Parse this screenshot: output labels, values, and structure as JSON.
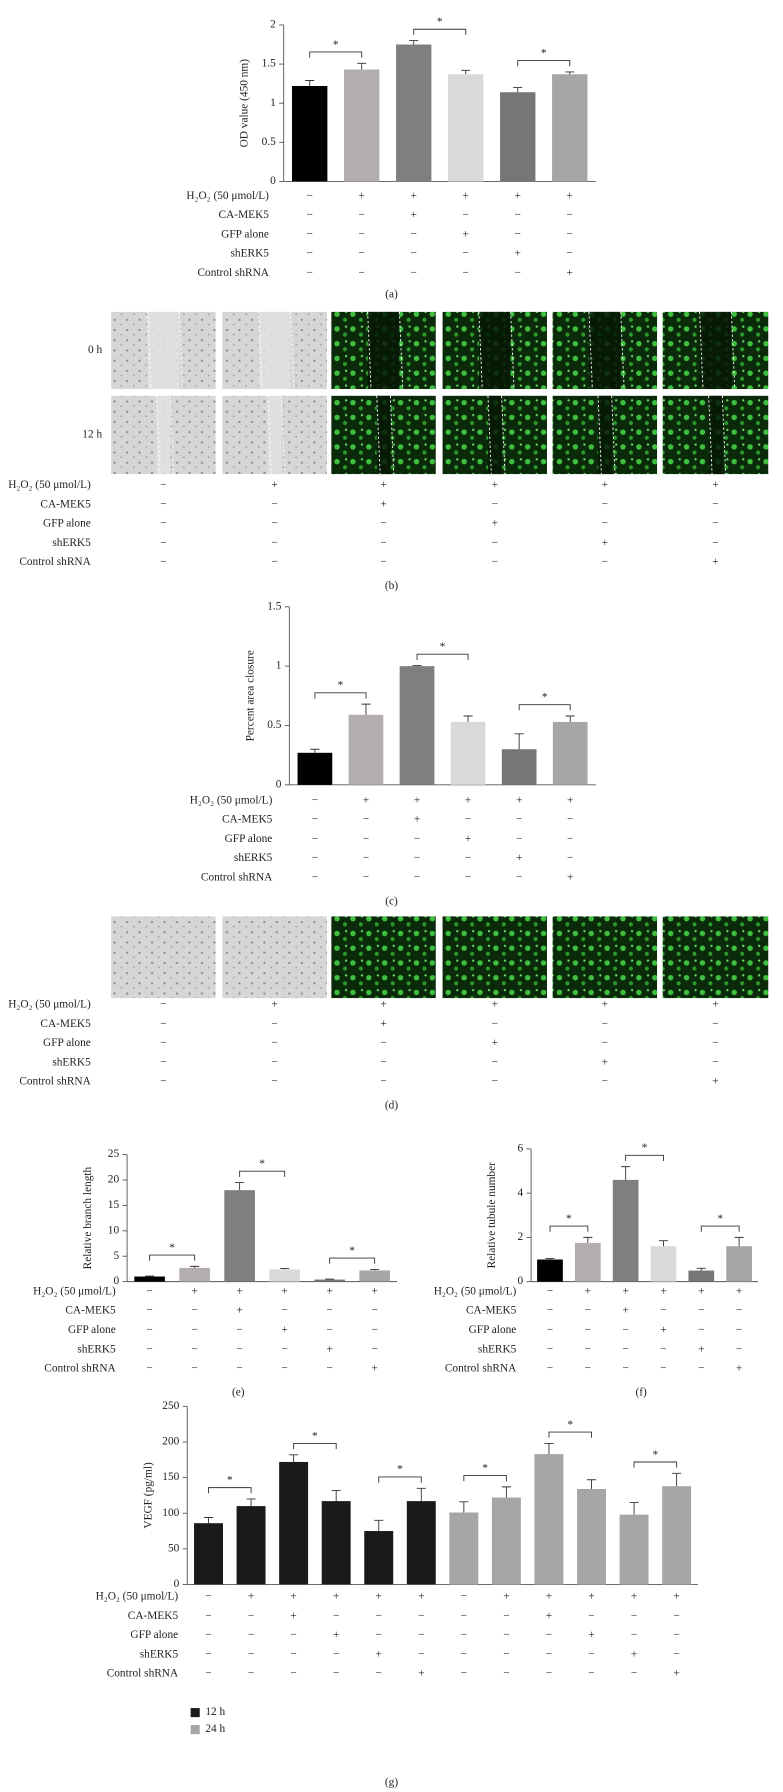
{
  "chart_data": [
    {
      "type": "bar",
      "panel": "(a)",
      "ylabel": "OD value (450 nm)",
      "ylim": [
        0,
        2
      ],
      "yticks": [
        0,
        0.5,
        1,
        1.5,
        2
      ],
      "series": [
        {
          "colors": [
            "#000000",
            "#b3adad",
            "#7f7f7f",
            "#d9d9d9",
            "#767676",
            "#a6a6a6"
          ],
          "values": [
            1.22,
            1.43,
            1.75,
            1.37,
            1.14,
            1.37
          ],
          "errors": [
            0.07,
            0.08,
            0.05,
            0.05,
            0.06,
            0.03
          ]
        }
      ],
      "annotations": [
        {
          "text": "*",
          "from": 0,
          "to": 1
        },
        {
          "text": "*",
          "from": 2,
          "to": 3
        },
        {
          "text": "*",
          "from": 4,
          "to": 5
        }
      ],
      "treatments": [
        {
          "label": "H₂O₂ (50 μmol/L)",
          "marks": [
            "−",
            "+",
            "+",
            "+",
            "+",
            "+"
          ]
        },
        {
          "label": "CA-MEK5",
          "marks": [
            "−",
            "−",
            "+",
            "−",
            "−",
            "−"
          ]
        },
        {
          "label": "GFP alone",
          "marks": [
            "−",
            "−",
            "−",
            "+",
            "−",
            "−"
          ]
        },
        {
          "label": "shERK5",
          "marks": [
            "−",
            "−",
            "−",
            "−",
            "+",
            "−"
          ]
        },
        {
          "label": "Control shRNA",
          "marks": [
            "−",
            "−",
            "−",
            "−",
            "−",
            "+"
          ]
        }
      ]
    },
    {
      "type": "micrograph",
      "panel": "(b)",
      "rows": [
        "0 h",
        "12 h"
      ],
      "treatments": [
        {
          "label": "H₂O₂ (50 μmol/L)",
          "marks": [
            "−",
            "+",
            "+",
            "+",
            "+",
            "+"
          ]
        },
        {
          "label": "CA-MEK5",
          "marks": [
            "−",
            "−",
            "+",
            "−",
            "−",
            "−"
          ]
        },
        {
          "label": "GFP alone",
          "marks": [
            "−",
            "−",
            "−",
            "+",
            "−",
            "−"
          ]
        },
        {
          "label": "shERK5",
          "marks": [
            "−",
            "−",
            "−",
            "−",
            "+",
            "−"
          ]
        },
        {
          "label": "Control shRNA",
          "marks": [
            "−",
            "−",
            "−",
            "−",
            "−",
            "+"
          ]
        }
      ]
    },
    {
      "type": "bar",
      "panel": "(c)",
      "ylabel": "Percent area closure",
      "ylim": [
        0,
        1.5
      ],
      "yticks": [
        0,
        0.5,
        1,
        1.5
      ],
      "series": [
        {
          "colors": [
            "#000000",
            "#b3adad",
            "#7f7f7f",
            "#d9d9d9",
            "#767676",
            "#a6a6a6"
          ],
          "values": [
            0.27,
            0.59,
            1.0,
            0.53,
            0.3,
            0.53
          ],
          "errors": [
            0.03,
            0.09,
            0.005,
            0.05,
            0.13,
            0.05
          ]
        }
      ],
      "annotations": [
        {
          "text": "*",
          "from": 0,
          "to": 1
        },
        {
          "text": "*",
          "from": 2,
          "to": 3
        },
        {
          "text": "*",
          "from": 4,
          "to": 5
        }
      ],
      "treatments": [
        {
          "label": "H₂O₂ (50 μmol/L)",
          "marks": [
            "−",
            "+",
            "+",
            "+",
            "+",
            "+"
          ]
        },
        {
          "label": "CA-MEK5",
          "marks": [
            "−",
            "−",
            "+",
            "−",
            "−",
            "−"
          ]
        },
        {
          "label": "GFP alone",
          "marks": [
            "−",
            "−",
            "−",
            "+",
            "−",
            "−"
          ]
        },
        {
          "label": "shERK5",
          "marks": [
            "−",
            "−",
            "−",
            "−",
            "+",
            "−"
          ]
        },
        {
          "label": "Control shRNA",
          "marks": [
            "−",
            "−",
            "−",
            "−",
            "−",
            "+"
          ]
        }
      ]
    },
    {
      "type": "micrograph",
      "panel": "(d)",
      "rows": [
        null
      ],
      "treatments": [
        {
          "label": "H₂O₂ (50 μmol/L)",
          "marks": [
            "−",
            "+",
            "+",
            "+",
            "+",
            "+"
          ]
        },
        {
          "label": "CA-MEK5",
          "marks": [
            "−",
            "−",
            "+",
            "−",
            "−",
            "−"
          ]
        },
        {
          "label": "GFP alone",
          "marks": [
            "−",
            "−",
            "−",
            "+",
            "−",
            "−"
          ]
        },
        {
          "label": "shERK5",
          "marks": [
            "−",
            "−",
            "−",
            "−",
            "+",
            "−"
          ]
        },
        {
          "label": "Control shRNA",
          "marks": [
            "−",
            "−",
            "−",
            "−",
            "−",
            "+"
          ]
        }
      ]
    },
    {
      "type": "bar",
      "panel": "(e)",
      "ylabel": "Relative branch length",
      "ylim": [
        0,
        25
      ],
      "yticks": [
        0,
        5,
        10,
        15,
        20,
        25
      ],
      "series": [
        {
          "colors": [
            "#000000",
            "#b3adad",
            "#7f7f7f",
            "#d9d9d9",
            "#767676",
            "#a6a6a6"
          ],
          "values": [
            1,
            2.7,
            18,
            2.4,
            0.4,
            2.2
          ],
          "errors": [
            0.1,
            0.3,
            1.5,
            0.2,
            0.1,
            0.2
          ]
        }
      ],
      "annotations": [
        {
          "text": "*",
          "from": 0,
          "to": 1
        },
        {
          "text": "*",
          "from": 2,
          "to": 3
        },
        {
          "text": "*",
          "from": 4,
          "to": 5
        }
      ],
      "treatments": [
        {
          "label": "H₂O₂ (50 μmol/L)",
          "marks": [
            "−",
            "+",
            "+",
            "+",
            "+",
            "+"
          ]
        },
        {
          "label": "CA-MEK5",
          "marks": [
            "−",
            "−",
            "+",
            "−",
            "−",
            "−"
          ]
        },
        {
          "label": "GFP alone",
          "marks": [
            "−",
            "−",
            "−",
            "+",
            "−",
            "−"
          ]
        },
        {
          "label": "shERK5",
          "marks": [
            "−",
            "−",
            "−",
            "−",
            "+",
            "−"
          ]
        },
        {
          "label": "Control shRNA",
          "marks": [
            "−",
            "−",
            "−",
            "−",
            "−",
            "+"
          ]
        }
      ]
    },
    {
      "type": "bar",
      "panel": "(f)",
      "ylabel": "Relative tubule number",
      "ylim": [
        0,
        6
      ],
      "yticks": [
        0,
        2,
        4,
        6
      ],
      "series": [
        {
          "colors": [
            "#000000",
            "#b3adad",
            "#7f7f7f",
            "#d9d9d9",
            "#767676",
            "#a6a6a6"
          ],
          "values": [
            1,
            1.75,
            4.6,
            1.6,
            0.5,
            1.6
          ],
          "errors": [
            0.05,
            0.25,
            0.6,
            0.25,
            0.1,
            0.4
          ]
        }
      ],
      "annotations": [
        {
          "text": "*",
          "from": 0,
          "to": 1
        },
        {
          "text": "*",
          "from": 2,
          "to": 3
        },
        {
          "text": "*",
          "from": 4,
          "to": 5
        }
      ],
      "treatments": [
        {
          "label": "H₂O₂ (50 μmol/L)",
          "marks": [
            "−",
            "+",
            "+",
            "+",
            "+",
            "+"
          ]
        },
        {
          "label": "CA-MEK5",
          "marks": [
            "−",
            "−",
            "+",
            "−",
            "−",
            "−"
          ]
        },
        {
          "label": "GFP alone",
          "marks": [
            "−",
            "−",
            "−",
            "+",
            "−",
            "−"
          ]
        },
        {
          "label": "shERK5",
          "marks": [
            "−",
            "−",
            "−",
            "−",
            "+",
            "−"
          ]
        },
        {
          "label": "Control shRNA",
          "marks": [
            "−",
            "−",
            "−",
            "−",
            "−",
            "+"
          ]
        }
      ]
    },
    {
      "type": "bar",
      "panel": "(g)",
      "ylabel": "VEGF (pg/ml)",
      "ylim": [
        0,
        250
      ],
      "yticks": [
        0,
        50,
        100,
        150,
        200,
        250
      ],
      "series": [
        {
          "name": "12 h",
          "color": "#1a1a1a",
          "values": [
            86,
            110,
            172,
            117,
            75,
            117
          ],
          "errors": [
            8,
            10,
            10,
            15,
            15,
            18
          ]
        },
        {
          "name": "24 h",
          "color": "#a6a6a6",
          "values": [
            101,
            122,
            183,
            134,
            98,
            138
          ],
          "errors": [
            15,
            15,
            15,
            13,
            17,
            18
          ]
        }
      ],
      "annotations": [
        {
          "text": "*",
          "from": 0,
          "to": 1
        },
        {
          "text": "*",
          "from": 2,
          "to": 3
        },
        {
          "text": "*",
          "from": 4,
          "to": 5
        },
        {
          "text": "*",
          "from": 6,
          "to": 7
        },
        {
          "text": "*",
          "from": 8,
          "to": 9
        },
        {
          "text": "*",
          "from": 10,
          "to": 11
        }
      ],
      "treatments": [
        {
          "label": "H₂O₂ (50 μmol/L)",
          "marks": [
            "−",
            "+",
            "+",
            "+",
            "+",
            "+",
            "−",
            "+",
            "+",
            "+",
            "+",
            "+"
          ]
        },
        {
          "label": "CA-MEK5",
          "marks": [
            "−",
            "−",
            "+",
            "−",
            "−",
            "−",
            "−",
            "−",
            "+",
            "−",
            "−",
            "−"
          ]
        },
        {
          "label": "GFP alone",
          "marks": [
            "−",
            "−",
            "−",
            "+",
            "−",
            "−",
            "−",
            "−",
            "−",
            "+",
            "−",
            "−"
          ]
        },
        {
          "label": "shERK5",
          "marks": [
            "−",
            "−",
            "−",
            "−",
            "+",
            "−",
            "−",
            "−",
            "−",
            "−",
            "+",
            "−"
          ]
        },
        {
          "label": "Control shRNA",
          "marks": [
            "−",
            "−",
            "−",
            "−",
            "−",
            "+",
            "−",
            "−",
            "−",
            "−",
            "−",
            "+"
          ]
        }
      ]
    }
  ]
}
